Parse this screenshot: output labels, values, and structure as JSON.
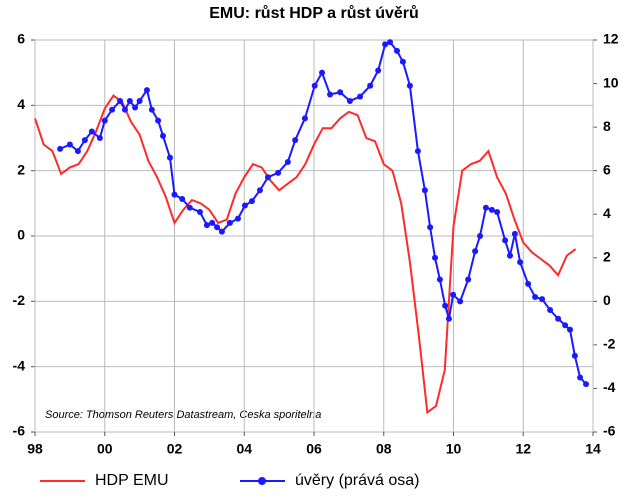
{
  "chart_data": {
    "type": "line",
    "title": "EMU: růst HDP a růst úvěrů",
    "annotation": "Source: Thomson Reuters Datastream, Ceska sporitelna",
    "xlim": [
      1998,
      2014
    ],
    "xticks": [
      {
        "value": 1998,
        "label": "98"
      },
      {
        "value": 2000,
        "label": "00"
      },
      {
        "value": 2002,
        "label": "02"
      },
      {
        "value": 2004,
        "label": "04"
      },
      {
        "value": 2006,
        "label": "06"
      },
      {
        "value": 2008,
        "label": "08"
      },
      {
        "value": 2010,
        "label": "10"
      },
      {
        "value": 2012,
        "label": "12"
      },
      {
        "value": 2014,
        "label": "14"
      }
    ],
    "ylim": [
      -6,
      6
    ],
    "yticks": [
      -6,
      -4,
      -2,
      0,
      2,
      4,
      6
    ],
    "y2lim": [
      -6,
      12
    ],
    "y2ticks": [
      -6,
      -4,
      -2,
      0,
      2,
      4,
      6,
      8,
      10,
      12
    ],
    "grid": true,
    "legend": "bottom",
    "series": [
      {
        "name": "HDP EMU",
        "color": "#ff2a2a",
        "axis": "y",
        "x": [
          1998,
          1998.25,
          1998.5,
          1998.75,
          1999,
          1999.25,
          1999.5,
          1999.75,
          2000,
          2000.25,
          2000.5,
          2000.75,
          2001,
          2001.25,
          2001.5,
          2001.75,
          2002,
          2002.25,
          2002.5,
          2002.75,
          2003,
          2003.25,
          2003.5,
          2003.75,
          2004,
          2004.25,
          2004.5,
          2004.75,
          2005,
          2005.25,
          2005.5,
          2005.75,
          2006,
          2006.25,
          2006.5,
          2006.75,
          2007,
          2007.25,
          2007.5,
          2007.75,
          2008,
          2008.25,
          2008.5,
          2008.75,
          2009,
          2009.25,
          2009.5,
          2009.75,
          2010,
          2010.25,
          2010.5,
          2010.75,
          2011,
          2011.25,
          2011.5,
          2011.75,
          2012,
          2012.25,
          2012.5,
          2012.75,
          2013,
          2013.25,
          2013.5
        ],
        "values": [
          3.6,
          2.8,
          2.6,
          1.9,
          2.1,
          2.2,
          2.6,
          3.2,
          3.9,
          4.3,
          4.1,
          3.5,
          3.1,
          2.3,
          1.8,
          1.2,
          0.4,
          0.8,
          1.1,
          1.0,
          0.8,
          0.4,
          0.5,
          1.3,
          1.8,
          2.2,
          2.1,
          1.7,
          1.4,
          1.6,
          1.8,
          2.2,
          2.8,
          3.3,
          3.3,
          3.6,
          3.8,
          3.7,
          3.0,
          2.9,
          2.2,
          2.0,
          1.0,
          -0.8,
          -3.0,
          -5.4,
          -5.2,
          -4.1,
          0.3,
          2.0,
          2.2,
          2.3,
          2.6,
          1.8,
          1.3,
          0.5,
          -0.2,
          -0.5,
          -0.7,
          -0.9,
          -1.2,
          -0.6,
          -0.4
        ]
      },
      {
        "name": "úvěry (prává osa)",
        "color": "#1a1aff",
        "axis": "y2",
        "marker": "circle",
        "x": [
          1998.72,
          1999.0,
          1999.23,
          1999.43,
          1999.63,
          1999.86,
          2000.0,
          2000.21,
          2000.44,
          2000.58,
          2000.72,
          2000.87,
          2001.0,
          2001.21,
          2001.35,
          2001.53,
          2001.67,
          2001.87,
          2002.0,
          2002.22,
          2002.44,
          2002.73,
          2002.93,
          2003.08,
          2003.22,
          2003.36,
          2003.59,
          2003.82,
          2004.02,
          2004.22,
          2004.45,
          2004.68,
          2004.97,
          2005.25,
          2005.46,
          2005.74,
          2006.02,
          2006.23,
          2006.46,
          2006.75,
          2007.03,
          2007.32,
          2007.61,
          2007.84,
          2008.04,
          2008.18,
          2008.38,
          2008.55,
          2008.75,
          2008.98,
          2009.18,
          2009.33,
          2009.47,
          2009.61,
          2009.76,
          2009.87,
          2009.99,
          2010.19,
          2010.42,
          2010.62,
          2010.76,
          2010.93,
          2011.1,
          2011.25,
          2011.48,
          2011.62,
          2011.76,
          2011.91,
          2012.14,
          2012.34,
          2012.54,
          2012.77,
          2013.0,
          2013.2,
          2013.34,
          2013.48,
          2013.63,
          2013.8
        ],
        "values": [
          7.0,
          7.2,
          6.9,
          7.4,
          7.8,
          7.5,
          8.3,
          8.8,
          9.2,
          8.8,
          9.2,
          8.9,
          9.2,
          9.7,
          8.8,
          8.3,
          7.6,
          6.6,
          4.9,
          4.7,
          4.3,
          4.1,
          3.5,
          3.6,
          3.4,
          3.2,
          3.6,
          3.8,
          4.4,
          4.6,
          5.1,
          5.7,
          5.9,
          6.4,
          7.4,
          8.4,
          9.9,
          10.5,
          9.5,
          9.6,
          9.2,
          9.4,
          9.9,
          10.6,
          11.8,
          11.9,
          11.5,
          11.0,
          9.9,
          6.9,
          5.1,
          3.4,
          2.0,
          1.0,
          -0.2,
          -0.8,
          0.3,
          0.0,
          1.0,
          2.3,
          3.0,
          4.3,
          4.2,
          4.1,
          2.8,
          2.1,
          3.1,
          1.8,
          0.8,
          0.2,
          0.1,
          -0.4,
          -0.8,
          -1.1,
          -1.3,
          -2.5,
          -3.5,
          -3.8
        ]
      }
    ]
  }
}
